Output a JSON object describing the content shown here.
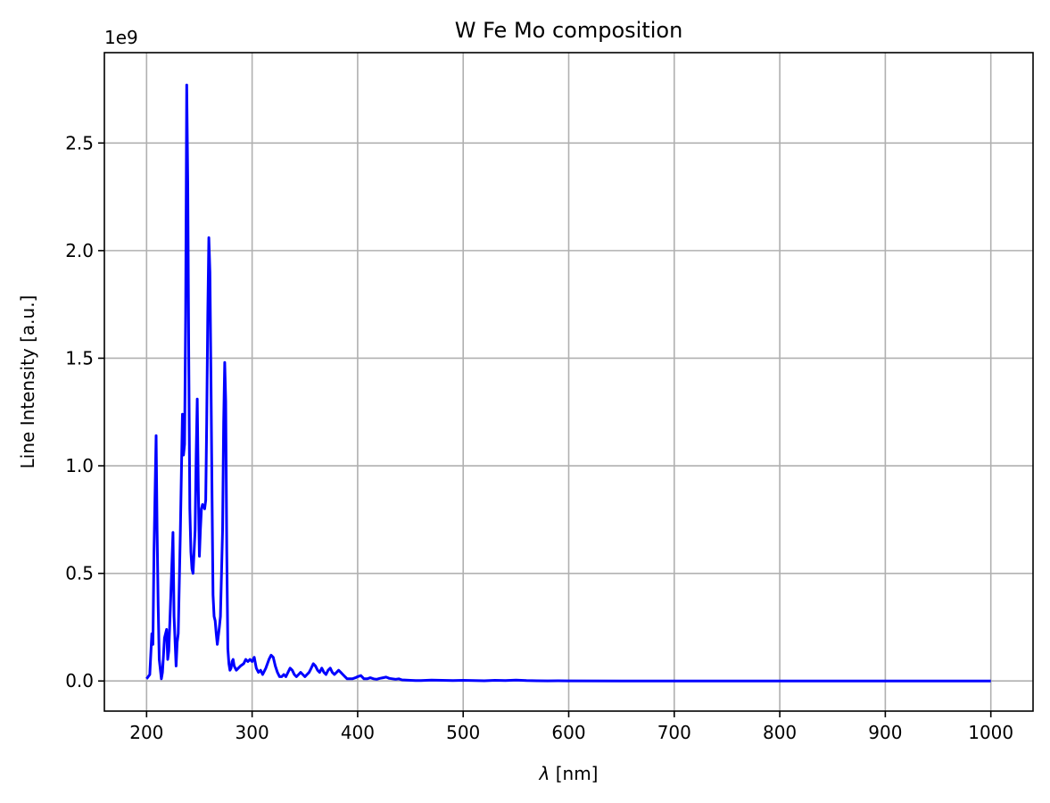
{
  "chart_data": {
    "type": "line",
    "title": "W Fe Mo composition",
    "xlabel_symbol": "λ",
    "xlabel_unit": " [nm]",
    "ylabel": "Line Intensity [a.u.]",
    "y_offset_text": "1e9",
    "y_scale": 1000000000,
    "xlim": [
      160,
      1040
    ],
    "ylim": [
      -0.14,
      2.92
    ],
    "xticks": [
      200,
      300,
      400,
      500,
      600,
      700,
      800,
      900,
      1000
    ],
    "yticks": [
      0.0,
      0.5,
      1.0,
      1.5,
      2.0,
      2.5
    ],
    "ytick_labels": [
      "0.0",
      "0.5",
      "1.0",
      "1.5",
      "2.0",
      "2.5"
    ],
    "grid": true,
    "series": [
      {
        "color": "#0000ff",
        "x": [
          200,
          203,
          205,
          206,
          207,
          209,
          210,
          211,
          212,
          214,
          215,
          217,
          219,
          220,
          221,
          223,
          225,
          226,
          228,
          229,
          230,
          232,
          234,
          235,
          236,
          237,
          238,
          239,
          240,
          241,
          242,
          243,
          244,
          246,
          247,
          248,
          249,
          250,
          251,
          252,
          253,
          255,
          256,
          257,
          258,
          259,
          260,
          261,
          262,
          263,
          264,
          265,
          266,
          267,
          269,
          270,
          272,
          273,
          274,
          275,
          276,
          277,
          278,
          279,
          280,
          281,
          282,
          283,
          285,
          287,
          289,
          292,
          294,
          296,
          298,
          300,
          302,
          304,
          306,
          308,
          310,
          313,
          316,
          318,
          320,
          322,
          324,
          326,
          328,
          330,
          332,
          334,
          336,
          338,
          340,
          342,
          344,
          346,
          348,
          350,
          352,
          354,
          356,
          358,
          360,
          362,
          364,
          366,
          368,
          370,
          372,
          374,
          376,
          378,
          380,
          382,
          384,
          386,
          388,
          390,
          392,
          395,
          398,
          400,
          403,
          406,
          409,
          412,
          415,
          418,
          421,
          424,
          427,
          430,
          433,
          436,
          439,
          442,
          446,
          450,
          455,
          460,
          470,
          480,
          490,
          500,
          510,
          520,
          530,
          540,
          550,
          560,
          570,
          580,
          590,
          600,
          650,
          700,
          750,
          800,
          850,
          900,
          950,
          1000
        ],
        "y": [
          0.01,
          0.03,
          0.22,
          0.17,
          0.6,
          1.14,
          0.7,
          0.35,
          0.1,
          0.01,
          0.04,
          0.2,
          0.24,
          0.1,
          0.14,
          0.4,
          0.69,
          0.3,
          0.07,
          0.18,
          0.22,
          0.7,
          1.24,
          1.05,
          1.1,
          1.7,
          2.77,
          2.3,
          1.5,
          0.8,
          0.6,
          0.52,
          0.5,
          0.7,
          1.05,
          1.31,
          0.9,
          0.58,
          0.7,
          0.8,
          0.82,
          0.8,
          0.84,
          1.2,
          1.7,
          2.06,
          1.9,
          1.4,
          0.85,
          0.4,
          0.3,
          0.28,
          0.22,
          0.17,
          0.25,
          0.3,
          0.7,
          1.2,
          1.48,
          1.3,
          0.6,
          0.15,
          0.08,
          0.05,
          0.06,
          0.09,
          0.1,
          0.07,
          0.05,
          0.06,
          0.07,
          0.08,
          0.1,
          0.09,
          0.1,
          0.09,
          0.11,
          0.06,
          0.04,
          0.05,
          0.03,
          0.06,
          0.1,
          0.12,
          0.11,
          0.07,
          0.04,
          0.02,
          0.02,
          0.03,
          0.02,
          0.04,
          0.06,
          0.05,
          0.03,
          0.02,
          0.03,
          0.04,
          0.03,
          0.02,
          0.03,
          0.04,
          0.06,
          0.08,
          0.07,
          0.05,
          0.04,
          0.06,
          0.04,
          0.03,
          0.05,
          0.06,
          0.04,
          0.03,
          0.04,
          0.05,
          0.04,
          0.03,
          0.02,
          0.01,
          0.01,
          0.01,
          0.015,
          0.02,
          0.025,
          0.01,
          0.01,
          0.015,
          0.01,
          0.008,
          0.012,
          0.015,
          0.018,
          0.012,
          0.01,
          0.008,
          0.01,
          0.005,
          0.004,
          0.003,
          0.002,
          0.002,
          0.004,
          0.003,
          0.002,
          0.003,
          0.002,
          0.001,
          0.003,
          0.002,
          0.004,
          0.002,
          0.001,
          0.0005,
          0.001,
          0.0005,
          0.0003,
          0.0002,
          0.0001,
          0.0001,
          0.0001,
          0.0001,
          0.0001,
          0.0001
        ]
      }
    ]
  }
}
